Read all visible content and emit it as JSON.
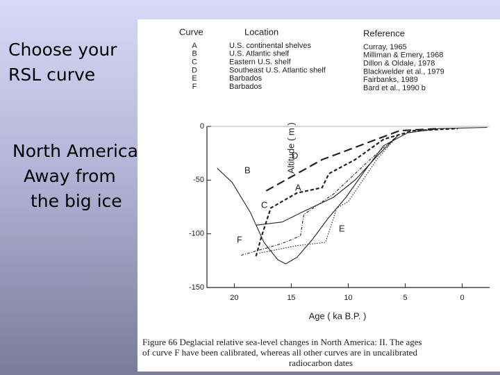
{
  "slide": {
    "heading": [
      "Choose your",
      "RSL curve"
    ],
    "note": [
      "North America",
      "Away from",
      "the big ice"
    ]
  },
  "legend_table": {
    "header": [
      "Curve",
      "Location",
      "Reference"
    ],
    "rows": [
      [
        "A",
        "U.S. continental shelves",
        "Curray, 1965"
      ],
      [
        "B",
        "U.S. Atlantic shelf",
        "Milliman & Emery, 1968"
      ],
      [
        "C",
        "Eastern U.S. shelf",
        "Dillon & Oldale, 1978"
      ],
      [
        "D",
        "Southeast U.S. Atlantic shelf",
        "Blackwelder et al., 1979"
      ],
      [
        "E",
        "Barbados",
        "Fairbanks, 1989"
      ],
      [
        "F",
        "Barbados",
        "Bard et al., 1990 b"
      ]
    ]
  },
  "caption": [
    "Figure 66   Deglacial relative sea-level changes in North America: II. The ages",
    "of curve F have been calibrated, whereas all other curves are in uncalibrated",
    "radiocarbon dates"
  ],
  "chart_data": {
    "type": "line",
    "xlabel": "Age    ( ka B.P. )",
    "ylabel": "Altitude    ( m )",
    "xlim": [
      22.4,
      -2.4
    ],
    "ylim": [
      -150,
      0
    ],
    "xticks": [
      20,
      15,
      10,
      5,
      0
    ],
    "yticks": [
      0,
      -50,
      -100,
      -150
    ],
    "series": [
      {
        "name": "A",
        "color": "#222",
        "dash": "5,3",
        "width": 2.2,
        "x": [
          18.1,
          17.6,
          16.8,
          14.5,
          12.3,
          11.7,
          9.4,
          6.9,
          4.3,
          0.4
        ],
        "values": [
          -121,
          -102,
          -76,
          -62,
          -57,
          -44,
          -31,
          -12,
          -4,
          -2
        ]
      },
      {
        "name": "B",
        "color": "#222",
        "dash": "none",
        "width": 1.1,
        "x": [
          21.5,
          20.2,
          18.6,
          17.4,
          16.2,
          15.5,
          14.5,
          13.2,
          11.8,
          10.2,
          8.6,
          6.9,
          4.8,
          2.0,
          -2.2
        ],
        "values": [
          -39,
          -52,
          -80,
          -108,
          -124,
          -128,
          -122,
          -106,
          -86,
          -66,
          -42,
          -18,
          -6,
          -2,
          -1
        ]
      },
      {
        "name": "C",
        "color": "#222",
        "dash": "none",
        "width": 1.1,
        "x": [
          18.1,
          15.8,
          13.9,
          11.3,
          9.4,
          7.5,
          5.6
        ],
        "values": [
          -92,
          -89,
          -79,
          -66,
          -50,
          -28,
          -8
        ]
      },
      {
        "name": "D",
        "color": "#222",
        "dash": "12,6",
        "width": 2.2,
        "x": [
          17.2,
          12.3,
          8.5,
          5.5,
          2.0
        ],
        "values": [
          -60,
          -31,
          -16,
          -4,
          -2
        ]
      },
      {
        "name": "E",
        "color": "#222",
        "dash": "1.5,2",
        "width": 1.1,
        "x": [
          17.8,
          14.5,
          12.0,
          11.0,
          10.0,
          7.5,
          5.6
        ],
        "values": [
          -118,
          -111,
          -108,
          -76,
          -70,
          -31,
          -8
        ]
      },
      {
        "name": "F",
        "color": "#222",
        "dash": "4,2,1,2",
        "width": 1.1,
        "x": [
          19.4,
          15.8,
          14.2,
          13.9,
          11.3,
          8.1,
          5.6
        ],
        "values": [
          -120,
          -109,
          -102,
          -82,
          -63,
          -31,
          -8
        ]
      }
    ]
  }
}
